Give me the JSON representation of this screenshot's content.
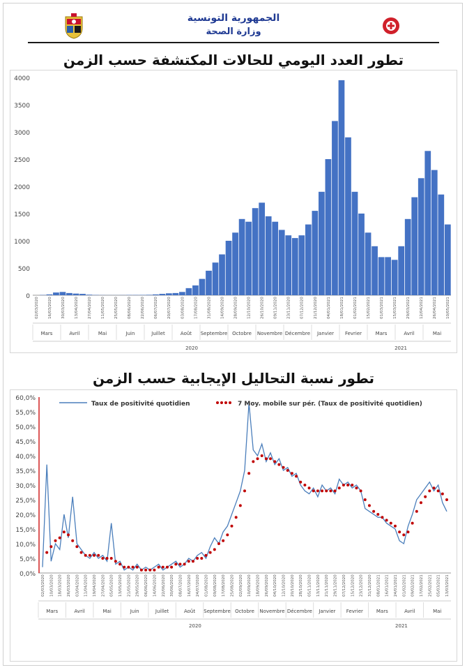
{
  "header": {
    "title_line1": "الجمهورية التونسية",
    "title_line2": "وزارة الصحة"
  },
  "chart_data": [
    {
      "type": "bar",
      "title": "تطور العدد اليومي للحالات المكتشفة حسب الزمن",
      "color": "#4472c4",
      "ylim": [
        0,
        4000
      ],
      "yticks": [
        0,
        500,
        1000,
        1500,
        2000,
        2500,
        3000,
        3500,
        4000
      ],
      "months": [
        "Mars",
        "Avril",
        "Mai",
        "Juin",
        "Juillet",
        "Août",
        "Septembre",
        "Octobre",
        "Novembre",
        "Décembre",
        "Janvier",
        "Fevrier",
        "Mars",
        "Avril",
        "Mai"
      ],
      "years": [
        "2020",
        "2021"
      ],
      "weekly_peaks": [
        {
          "date": "02/03/2020",
          "value": 0
        },
        {
          "date": "09/03/2020",
          "value": 5
        },
        {
          "date": "16/03/2020",
          "value": 15
        },
        {
          "date": "23/03/2020",
          "value": 50
        },
        {
          "date": "30/03/2020",
          "value": 60
        },
        {
          "date": "06/04/2020",
          "value": 40
        },
        {
          "date": "13/04/2020",
          "value": 30
        },
        {
          "date": "20/04/2020",
          "value": 25
        },
        {
          "date": "27/04/2020",
          "value": 10
        },
        {
          "date": "04/05/2020",
          "value": 5
        },
        {
          "date": "11/05/2020",
          "value": 3
        },
        {
          "date": "18/05/2020",
          "value": 2
        },
        {
          "date": "25/05/2020",
          "value": 2
        },
        {
          "date": "01/06/2020",
          "value": 3
        },
        {
          "date": "08/06/2020",
          "value": 5
        },
        {
          "date": "15/06/2020",
          "value": 5
        },
        {
          "date": "22/06/2020",
          "value": 6
        },
        {
          "date": "29/06/2020",
          "value": 8
        },
        {
          "date": "06/07/2020",
          "value": 15
        },
        {
          "date": "13/07/2020",
          "value": 25
        },
        {
          "date": "20/07/2020",
          "value": 35
        },
        {
          "date": "27/07/2020",
          "value": 40
        },
        {
          "date": "03/08/2020",
          "value": 60
        },
        {
          "date": "10/08/2020",
          "value": 130
        },
        {
          "date": "17/08/2020",
          "value": 180
        },
        {
          "date": "24/08/2020",
          "value": 300
        },
        {
          "date": "31/08/2020",
          "value": 450
        },
        {
          "date": "07/09/2020",
          "value": 600
        },
        {
          "date": "14/09/2020",
          "value": 750
        },
        {
          "date": "21/09/2020",
          "value": 1000
        },
        {
          "date": "28/09/2020",
          "value": 1150
        },
        {
          "date": "05/10/2020",
          "value": 1400
        },
        {
          "date": "12/10/2020",
          "value": 1350
        },
        {
          "date": "19/10/2020",
          "value": 1600
        },
        {
          "date": "26/10/2020",
          "value": 1700
        },
        {
          "date": "02/11/2020",
          "value": 1450
        },
        {
          "date": "09/11/2020",
          "value": 1350
        },
        {
          "date": "16/11/2020",
          "value": 1200
        },
        {
          "date": "23/11/2020",
          "value": 1100
        },
        {
          "date": "30/11/2020",
          "value": 1050
        },
        {
          "date": "07/12/2020",
          "value": 1100
        },
        {
          "date": "14/12/2020",
          "value": 1300
        },
        {
          "date": "21/12/2020",
          "value": 1550
        },
        {
          "date": "28/12/2020",
          "value": 1900
        },
        {
          "date": "04/01/2021",
          "value": 2500
        },
        {
          "date": "11/01/2021",
          "value": 3200
        },
        {
          "date": "18/01/2021",
          "value": 3950
        },
        {
          "date": "25/01/2021",
          "value": 2900
        },
        {
          "date": "01/02/2021",
          "value": 1900
        },
        {
          "date": "08/02/2021",
          "value": 1500
        },
        {
          "date": "15/02/2021",
          "value": 1150
        },
        {
          "date": "22/02/2021",
          "value": 900
        },
        {
          "date": "01/03/2021",
          "value": 700
        },
        {
          "date": "08/03/2021",
          "value": 700
        },
        {
          "date": "15/03/2021",
          "value": 650
        },
        {
          "date": "22/03/2021",
          "value": 900
        },
        {
          "date": "29/03/2021",
          "value": 1400
        },
        {
          "date": "05/04/2021",
          "value": 1800
        },
        {
          "date": "12/04/2021",
          "value": 2150
        },
        {
          "date": "19/04/2021",
          "value": 2650
        },
        {
          "date": "26/04/2021",
          "value": 2300
        },
        {
          "date": "03/05/2021",
          "value": 1850
        },
        {
          "date": "10/05/2021",
          "value": 1300
        }
      ]
    },
    {
      "type": "line",
      "title": "تطور نسبة التحاليل الإيجابية حسب الزمن",
      "ylim": [
        0,
        60
      ],
      "yticks": [
        "0,0%",
        "5,0%",
        "10,0%",
        "15,0%",
        "20,0%",
        "25,0%",
        "30,0%",
        "35,0%",
        "40,0%",
        "45,0%",
        "50,0%",
        "55,0%",
        "60,0%"
      ],
      "months": [
        "Mars",
        "Avril",
        "Mai",
        "Juin",
        "Juillet",
        "Août",
        "Septembre",
        "Octobre",
        "Novembre",
        "Décembre",
        "Janvier",
        "Fevrier",
        "Mars",
        "Avril",
        "Mai"
      ],
      "years": [
        "2020",
        "2021"
      ],
      "series": [
        {
          "name": "Taux de positivité quotidien",
          "color": "#4a7ebb",
          "values": [
            2,
            37,
            4,
            10,
            8,
            20,
            12,
            26,
            10,
            8,
            6,
            5,
            7,
            5,
            6,
            4,
            17,
            3,
            4,
            1,
            2,
            1,
            3,
            1,
            2,
            1,
            2,
            3,
            1,
            2,
            3,
            4,
            2,
            3,
            5,
            4,
            6,
            7,
            5,
            9,
            12,
            10,
            14,
            16,
            20,
            24,
            28,
            35,
            58,
            42,
            40,
            44,
            38,
            41,
            37,
            39,
            35,
            36,
            33,
            34,
            30,
            28,
            27,
            29,
            26,
            30,
            28,
            29,
            27,
            32,
            30,
            31,
            29,
            30,
            28,
            22,
            21,
            20,
            19,
            19,
            17,
            16,
            15,
            11,
            10,
            16,
            20,
            25,
            27,
            29,
            31,
            28,
            30,
            24,
            21
          ]
        },
        {
          "name": "7 Moy. mobile sur pér. (Taux de positivité quotidien)",
          "color": "#c00000",
          "values": [
            null,
            7,
            9,
            11,
            12,
            14,
            13,
            11,
            9,
            7,
            6,
            6,
            6,
            6,
            5,
            5,
            5,
            4,
            3,
            2,
            2,
            2,
            2,
            1,
            1,
            1,
            1,
            2,
            2,
            2,
            2,
            3,
            3,
            3,
            4,
            4,
            5,
            5,
            6,
            7,
            8,
            10,
            11,
            13,
            16,
            19,
            23,
            28,
            34,
            38,
            39,
            40,
            39,
            39,
            38,
            37,
            36,
            35,
            34,
            33,
            31,
            30,
            29,
            28,
            28,
            28,
            28,
            28,
            28,
            29,
            30,
            30,
            30,
            29,
            28,
            25,
            23,
            21,
            20,
            19,
            18,
            17,
            16,
            14,
            13,
            14,
            17,
            21,
            24,
            26,
            28,
            29,
            28,
            27,
            25
          ]
        }
      ]
    }
  ]
}
